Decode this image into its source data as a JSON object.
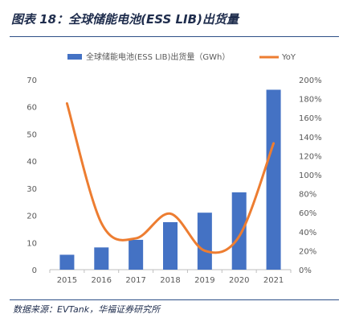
{
  "header": {
    "title": "图表 18：全球储能电池(ESS LIB)出货量"
  },
  "footer": {
    "source": "数据来源：EVTank，华福证券研究所"
  },
  "colors": {
    "bar": "#4472C4",
    "line": "#ED7D31",
    "rule": "#2E4F87",
    "axis": "#BFBFBF",
    "text": "#595959"
  },
  "chart_data": {
    "type": "bar+line",
    "categories": [
      "2015",
      "2016",
      "2017",
      "2018",
      "2019",
      "2020",
      "2021"
    ],
    "series": [
      {
        "name": "全球储能电池(ESS LIB)出货量（GWh）",
        "type": "bar",
        "axis": "left",
        "values": [
          5.5,
          8.2,
          11,
          17.5,
          21,
          28.5,
          66.3
        ]
      },
      {
        "name": "YoY",
        "type": "line",
        "axis": "right",
        "values": [
          1.75,
          0.49,
          0.33,
          0.59,
          0.2,
          0.35,
          1.33
        ]
      }
    ],
    "y_left": {
      "ylim": [
        0,
        70
      ],
      "ticks": [
        0,
        10,
        20,
        30,
        40,
        50,
        60,
        70
      ],
      "tick_labels": [
        "0",
        "10",
        "20",
        "30",
        "40",
        "50",
        "60",
        "70"
      ]
    },
    "y_right": {
      "ylim": [
        0,
        2.0
      ],
      "ticks": [
        0,
        0.2,
        0.4,
        0.6,
        0.8,
        1.0,
        1.2,
        1.4,
        1.6,
        1.8,
        2.0
      ],
      "tick_labels": [
        "0%",
        "20%",
        "40%",
        "60%",
        "80%",
        "100%",
        "120%",
        "140%",
        "160%",
        "180%",
        "200%"
      ]
    },
    "legend": {
      "position": "top"
    },
    "grid": false
  }
}
